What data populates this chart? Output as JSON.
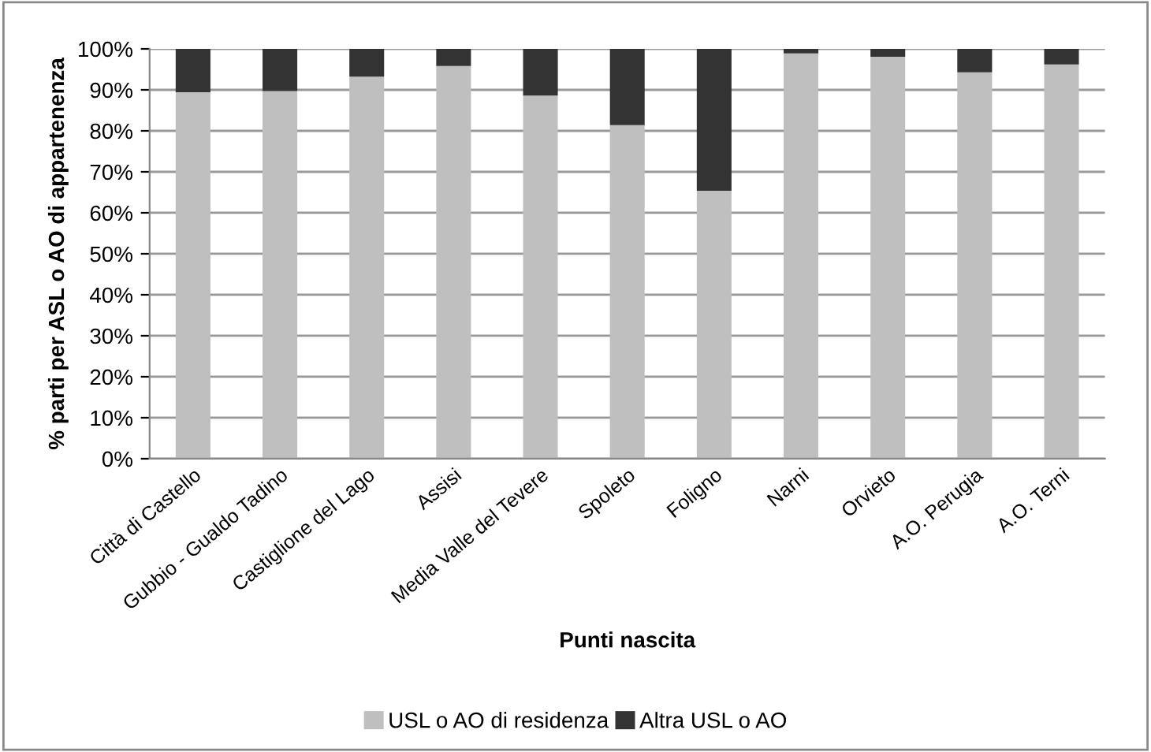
{
  "chart_data": {
    "type": "bar",
    "stacked": true,
    "xlabel": "Punti nascita",
    "ylabel": "% parti per ASL o AO di appartenenza",
    "categories": [
      "Città di Castello",
      "Gubbio - Gualdo Tadino",
      "Castiglione del Lago",
      "Assisi",
      "Media Valle del Tevere",
      "Spoleto",
      "Foligno",
      "Narni",
      "Orvieto",
      "A.O. Perugia",
      "A.O. Terni"
    ],
    "series": [
      {
        "name": "USL o AO di residenza",
        "color": "#bfbfbf",
        "values": [
          89.4,
          89.7,
          93.2,
          95.8,
          88.6,
          81.4,
          65.4,
          98.9,
          98.1,
          94.3,
          96.2
        ]
      },
      {
        "name": "Altra USL o AO",
        "color": "#333333",
        "values": [
          10.6,
          10.3,
          6.8,
          4.2,
          11.4,
          18.6,
          34.6,
          1.1,
          1.9,
          5.7,
          3.8
        ]
      }
    ],
    "ylim": [
      0,
      100
    ],
    "yticks": [
      {
        "value": 0,
        "label": "0%"
      },
      {
        "value": 10,
        "label": "10%"
      },
      {
        "value": 20,
        "label": "20%"
      },
      {
        "value": 30,
        "label": "30%"
      },
      {
        "value": 40,
        "label": "40%"
      },
      {
        "value": 50,
        "label": "50%"
      },
      {
        "value": 60,
        "label": "60%"
      },
      {
        "value": 70,
        "label": "70%"
      },
      {
        "value": 80,
        "label": "80%"
      },
      {
        "value": 90,
        "label": "90%"
      },
      {
        "value": 100,
        "label": "100%"
      }
    ],
    "grid": "y",
    "legend": "bottom"
  }
}
